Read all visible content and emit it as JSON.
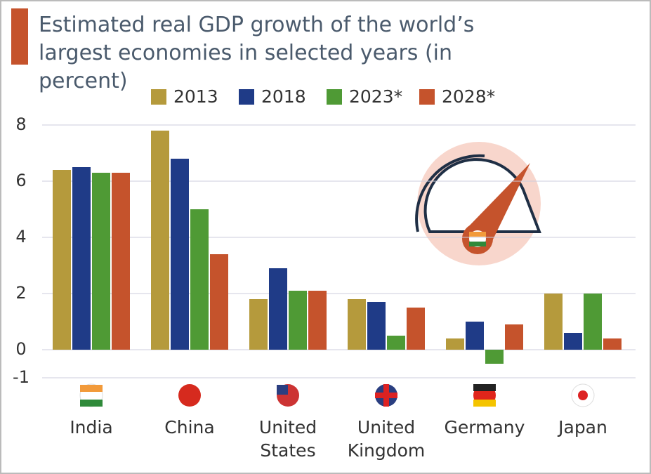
{
  "chart_data": {
    "type": "bar",
    "title": "Estimated real GDP growth of the world’s largest economies in selected years (in percent)",
    "categories": [
      "India",
      "China",
      "United States",
      "United Kingdom",
      "Germany",
      "Japan"
    ],
    "series": [
      {
        "name": "2013",
        "color": "#b59a3c",
        "values": [
          6.4,
          7.8,
          1.8,
          1.8,
          0.4,
          2.0
        ]
      },
      {
        "name": "2018",
        "color": "#1f3b87",
        "values": [
          6.5,
          6.8,
          2.9,
          1.7,
          1.0,
          0.6
        ]
      },
      {
        "name": "2023*",
        "color": "#4f9a35",
        "values": [
          6.3,
          5.0,
          2.1,
          0.5,
          -0.5,
          2.0
        ]
      },
      {
        "name": "2028*",
        "color": "#c5532c",
        "values": [
          6.3,
          3.4,
          2.1,
          1.5,
          0.9,
          0.4
        ]
      }
    ],
    "ylim": [
      -1,
      8
    ],
    "yticks": [
      -1,
      0,
      2,
      4,
      6,
      8
    ],
    "grid": true
  }
}
